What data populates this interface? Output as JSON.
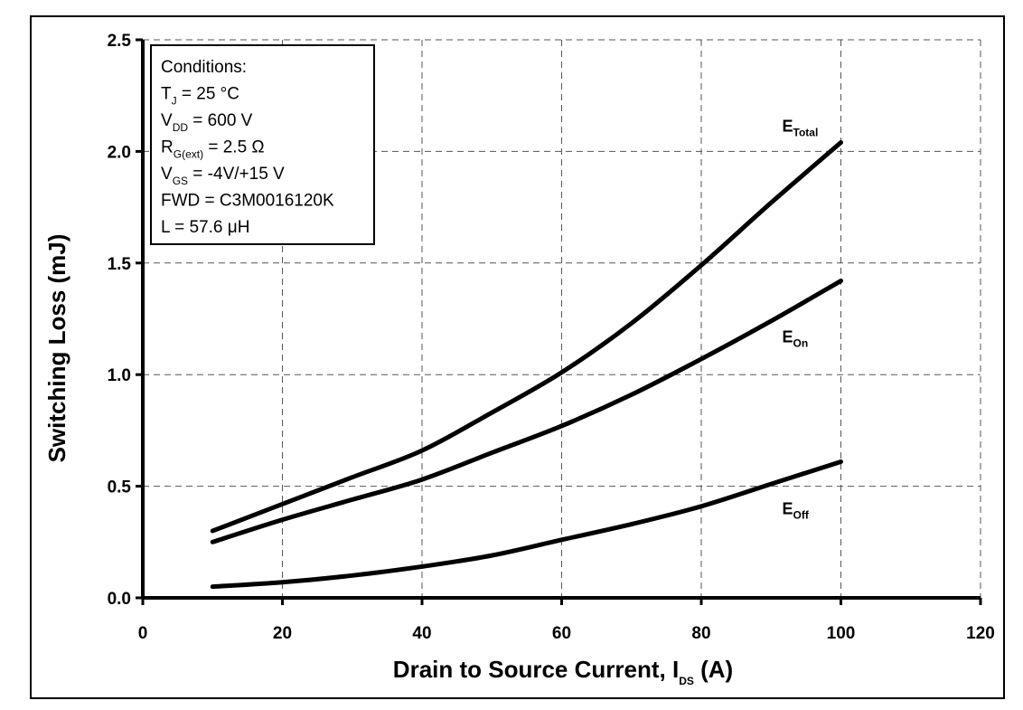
{
  "chart_data": {
    "type": "line",
    "title": "",
    "xlabel": "Drain to Source Current, I",
    "xlabel_sub": "DS",
    "xlabel_unit": " (A)",
    "ylabel": "Switching Loss (mJ)",
    "xlim": [
      0,
      120
    ],
    "ylim": [
      0,
      2.5
    ],
    "xticks": [
      0,
      20,
      40,
      60,
      80,
      100,
      120
    ],
    "xtick_labels": [
      "0",
      "20",
      "40",
      "60",
      "80",
      "100",
      "120"
    ],
    "yticks": [
      0,
      0.5,
      1.0,
      1.5,
      2.0,
      2.5
    ],
    "ytick_labels": [
      "0.0",
      "0.5",
      "1.0",
      "1.5",
      "2.0",
      "2.5"
    ],
    "grid": true,
    "legend_placement": "top-left",
    "series": [
      {
        "name": "ETotal",
        "label_main": "E",
        "label_sub": "Total",
        "x": [
          10,
          20,
          30,
          40,
          50,
          60,
          70,
          80,
          90,
          100
        ],
        "y": [
          0.3,
          0.42,
          0.54,
          0.66,
          0.83,
          1.01,
          1.23,
          1.49,
          1.77,
          2.04
        ]
      },
      {
        "name": "EOn",
        "label_main": "E",
        "label_sub": "On",
        "x": [
          10,
          20,
          30,
          40,
          50,
          60,
          70,
          80,
          90,
          100
        ],
        "y": [
          0.25,
          0.35,
          0.44,
          0.53,
          0.65,
          0.77,
          0.91,
          1.07,
          1.24,
          1.42
        ]
      },
      {
        "name": "EOff",
        "label_main": "E",
        "label_sub": "Off",
        "x": [
          10,
          20,
          30,
          40,
          50,
          60,
          70,
          80,
          90,
          100
        ],
        "y": [
          0.05,
          0.07,
          0.1,
          0.14,
          0.19,
          0.26,
          0.33,
          0.41,
          0.51,
          0.61
        ]
      }
    ],
    "legend": {
      "lines": [
        {
          "main": "Conditions:",
          "sub": "",
          "rest": ""
        },
        {
          "main": "T",
          "sub": "J",
          "rest": " = 25 °C"
        },
        {
          "main": "V",
          "sub": "DD",
          "rest": " = 600 V"
        },
        {
          "main": "R",
          "sub": "G(ext)",
          "rest": " = 2.5 Ω"
        },
        {
          "main": "V",
          "sub": "GS",
          "rest": " = -4V/+15 V"
        },
        {
          "main": "FWD = C3M0016120K",
          "sub": "",
          "rest": ""
        },
        {
          "main": "L = 57.6 μH",
          "sub": "",
          "rest": ""
        }
      ]
    }
  }
}
